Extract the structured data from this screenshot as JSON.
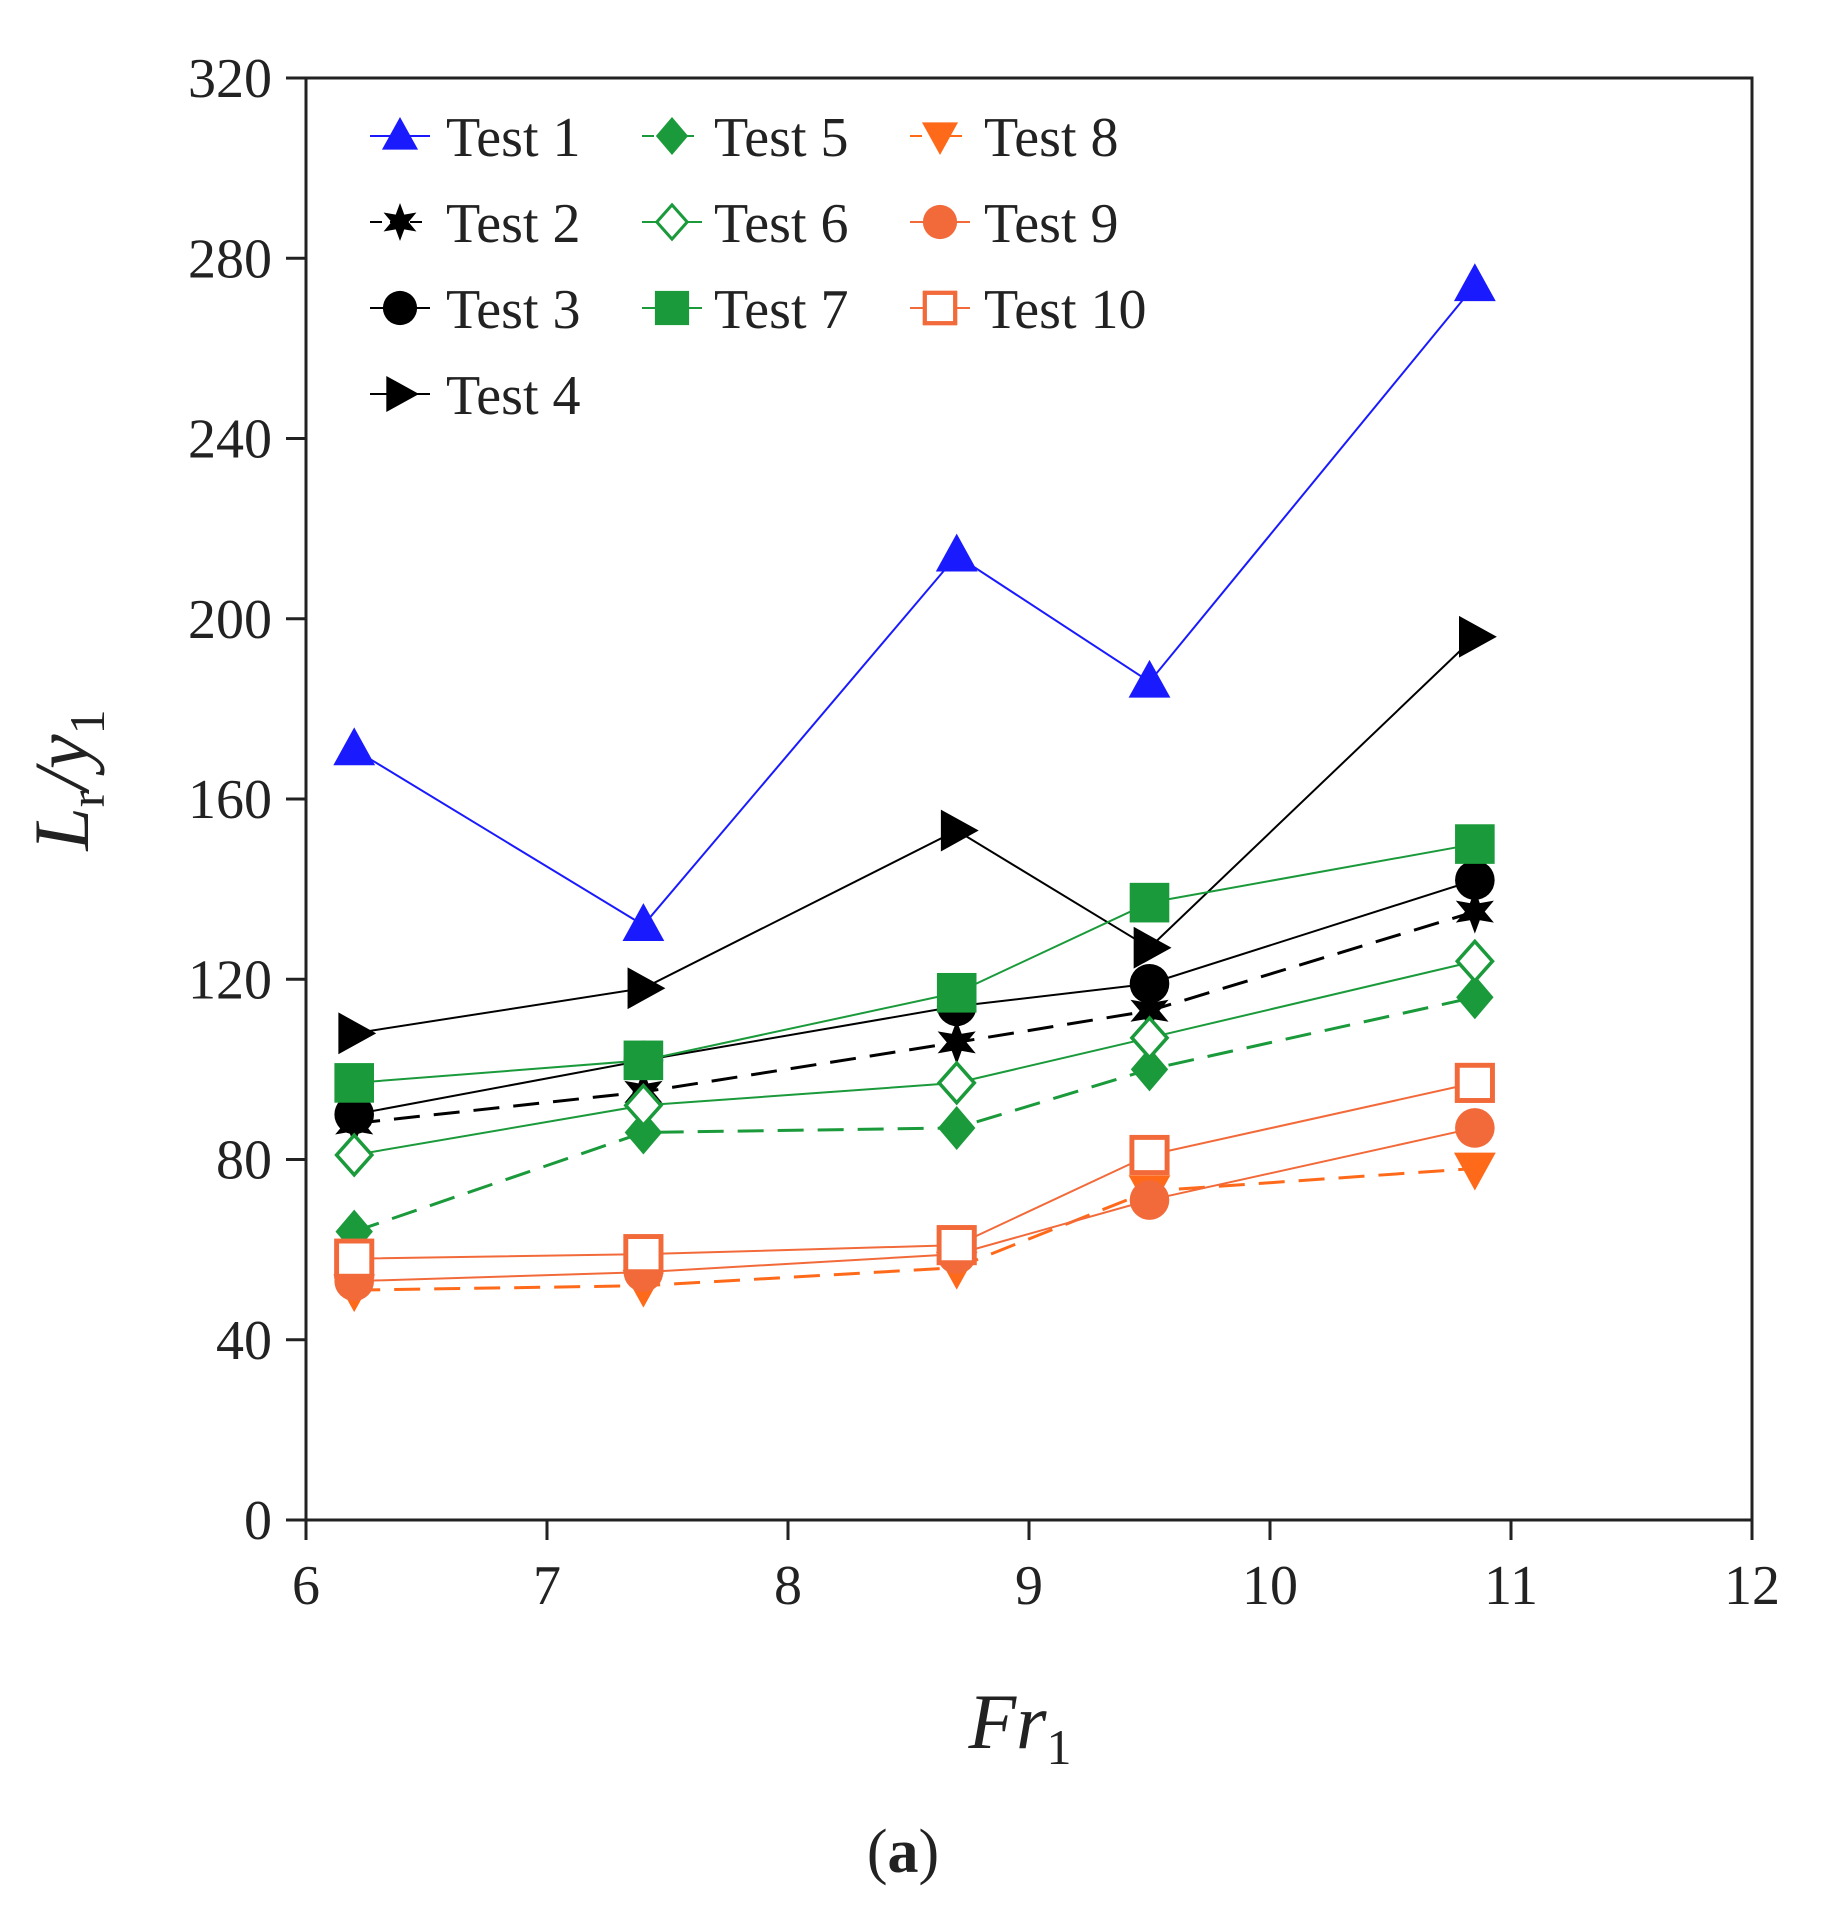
{
  "chart_data": {
    "type": "line",
    "panel_label": {
      "open": "(",
      "letter": "a",
      "close": ")"
    },
    "xlabel": {
      "main": "Fr",
      "sub": "1"
    },
    "ylabel": {
      "main": "L",
      "sub_main": "r",
      "slash": "/",
      "y": "y",
      "sub_y": "1"
    },
    "xlim": [
      6,
      12
    ],
    "ylim": [
      0,
      320
    ],
    "xticks": [
      6,
      7,
      8,
      9,
      10,
      11,
      12
    ],
    "yticks": [
      0,
      40,
      80,
      120,
      160,
      200,
      240,
      280,
      320
    ],
    "grid": false,
    "legend_position": "top-left",
    "x": [
      6.2,
      7.4,
      8.7,
      9.5,
      10.85
    ],
    "series": [
      {
        "name": "Test 1",
        "marker": "triangle-up",
        "color": "#1a1aff",
        "dash": false,
        "values": [
          171,
          132,
          214,
          186,
          274
        ]
      },
      {
        "name": "Test 2",
        "marker": "star",
        "color": "#000000",
        "dash": true,
        "values": [
          88,
          95,
          106,
          113,
          135
        ]
      },
      {
        "name": "Test 3",
        "marker": "circle",
        "color": "#000000",
        "dash": false,
        "values": [
          90,
          102,
          114,
          119,
          142
        ]
      },
      {
        "name": "Test 4",
        "marker": "triangle-right",
        "color": "#000000",
        "dash": false,
        "values": [
          108,
          118,
          153,
          127,
          196
        ]
      },
      {
        "name": "Test 5",
        "marker": "diamond",
        "color": "#1a9a3a",
        "dash": true,
        "values": [
          64,
          86,
          87,
          100,
          116
        ]
      },
      {
        "name": "Test 6",
        "marker": "diamond-open",
        "color": "#1a9a3a",
        "dash": false,
        "values": [
          81,
          92,
          97,
          107,
          124
        ]
      },
      {
        "name": "Test 7",
        "marker": "square",
        "color": "#1a9a3a",
        "dash": false,
        "values": [
          97,
          102,
          117,
          137,
          150
        ]
      },
      {
        "name": "Test 8",
        "marker": "triangle-down",
        "color": "#ff6a1a",
        "dash": true,
        "values": [
          51,
          52,
          56,
          73,
          78
        ]
      },
      {
        "name": "Test 9",
        "marker": "circle",
        "color": "#f26a3a",
        "dash": false,
        "values": [
          53,
          55,
          59,
          71,
          87
        ]
      },
      {
        "name": "Test 10",
        "marker": "square-open",
        "color": "#f26a3a",
        "dash": false,
        "values": [
          58,
          59,
          61,
          81,
          97
        ]
      }
    ]
  }
}
